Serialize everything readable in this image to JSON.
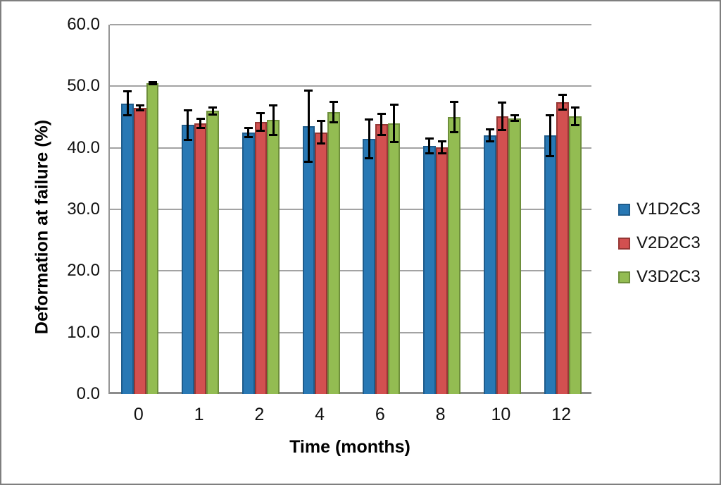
{
  "chart_data": {
    "type": "bar",
    "title": "",
    "xlabel": "Time (months)",
    "ylabel": "Deformation at failure (%)",
    "categories": [
      "0",
      "1",
      "2",
      "4",
      "6",
      "8",
      "10",
      "12"
    ],
    "series": [
      {
        "name": "V1D2C3",
        "color": "#2878b4",
        "border_color": "#1f5c8b",
        "values": [
          47.2,
          43.7,
          42.5,
          43.5,
          41.5,
          40.3,
          42.0,
          42.0
        ],
        "errors": [
          2.0,
          2.5,
          0.8,
          5.8,
          3.2,
          1.3,
          1.0,
          3.4
        ]
      },
      {
        "name": "V2D2C3",
        "color": "#d25050",
        "border_color": "#953735",
        "values": [
          46.5,
          44.0,
          44.2,
          42.5,
          43.8,
          40.1,
          45.1,
          47.4
        ],
        "errors": [
          0.5,
          0.8,
          1.5,
          1.9,
          1.8,
          1.0,
          2.3,
          1.3
        ]
      },
      {
        "name": "V3D2C3",
        "color": "#93bc52",
        "border_color": "#6e8f3b",
        "values": [
          50.5,
          46.0,
          44.5,
          45.8,
          44.0,
          45.0,
          44.8,
          45.1
        ],
        "errors": [
          0.2,
          0.6,
          2.5,
          1.7,
          3.1,
          2.5,
          0.5,
          1.5
        ]
      }
    ],
    "ylim": [
      0,
      60
    ],
    "ytick_step": 10,
    "yticks": [
      "0.0",
      "10.0",
      "20.0",
      "30.0",
      "40.0",
      "50.0",
      "60.0"
    ],
    "grid": "horizontal",
    "legend_position": "right",
    "error_bar_color": "#000000",
    "gridline_color": "#a3a3a3",
    "axis_line_color": "#8c8c8c",
    "figure_border_color": "#7f7f7f",
    "background_color": "#ffffff"
  }
}
